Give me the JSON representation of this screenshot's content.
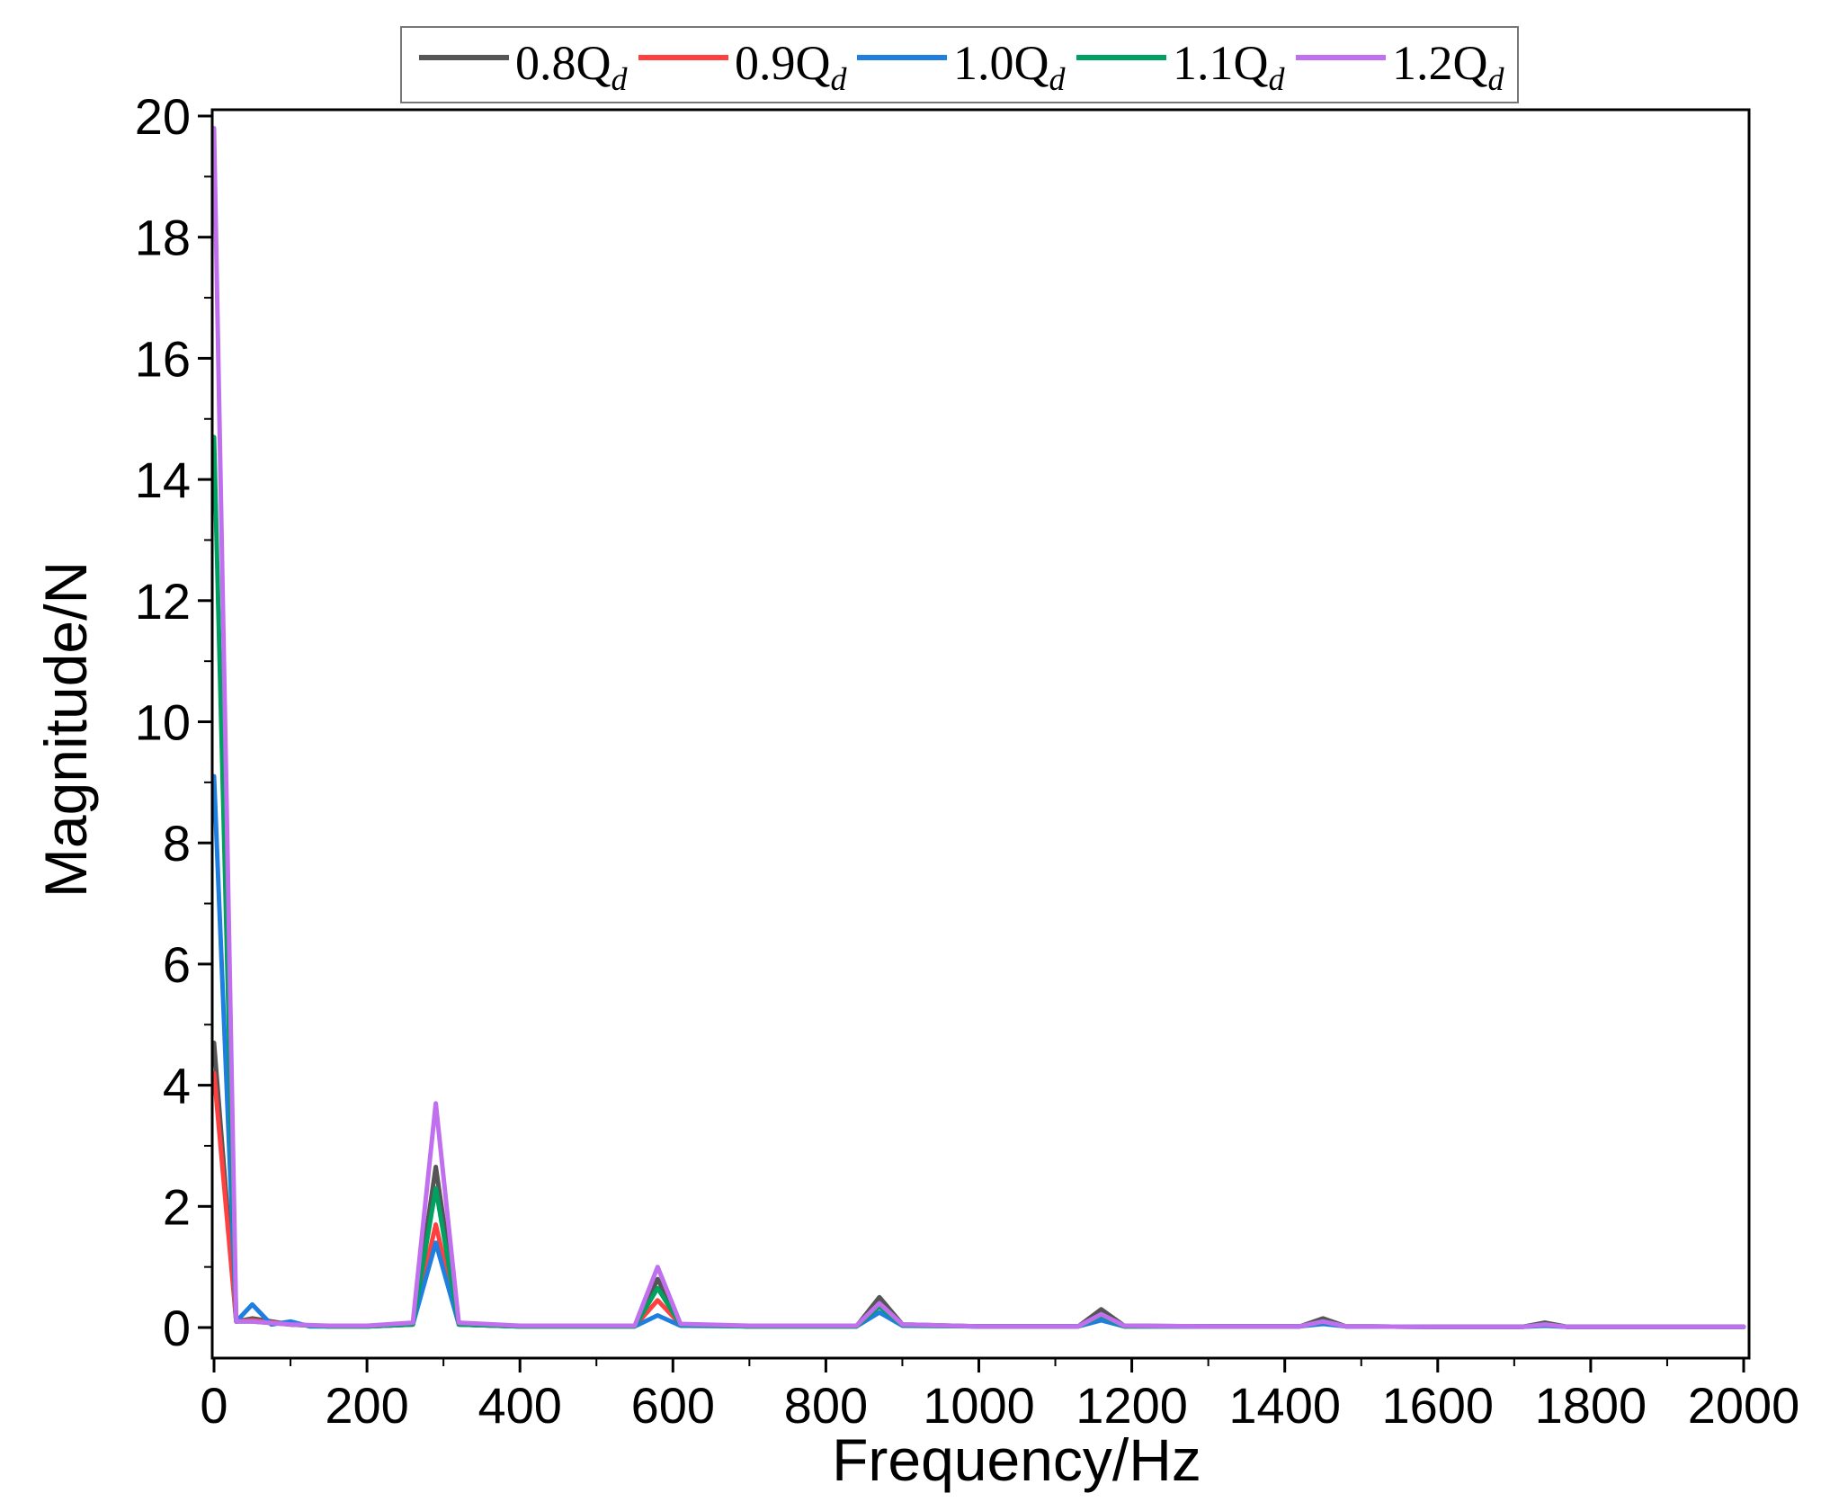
{
  "chart_data": {
    "type": "line",
    "xlabel": "Frequency/Hz",
    "ylabel": "Magnitude/N",
    "xlim": [
      0,
      2000
    ],
    "ylim": [
      0,
      20
    ],
    "xticks": [
      "0",
      "200",
      "400",
      "600",
      "800",
      "1000",
      "1200",
      "1400",
      "1600",
      "1800",
      "2000"
    ],
    "yticks": [
      "0",
      "2",
      "4",
      "6",
      "8",
      "10",
      "12",
      "14",
      "16",
      "18",
      "20"
    ],
    "grid": false,
    "legend_position": "top-center",
    "series": [
      {
        "name": "0.8Q",
        "sub": "d",
        "color": "#555555",
        "points": [
          [
            0,
            4.7
          ],
          [
            29,
            0.1
          ],
          [
            50,
            0.15
          ],
          [
            100,
            0.05
          ],
          [
            150,
            0.02
          ],
          [
            200,
            0.02
          ],
          [
            260,
            0.05
          ],
          [
            290,
            2.65
          ],
          [
            320,
            0.05
          ],
          [
            400,
            0.02
          ],
          [
            550,
            0.02
          ],
          [
            580,
            0.8
          ],
          [
            610,
            0.05
          ],
          [
            700,
            0.02
          ],
          [
            840,
            0.02
          ],
          [
            870,
            0.5
          ],
          [
            900,
            0.05
          ],
          [
            1000,
            0.02
          ],
          [
            1130,
            0.02
          ],
          [
            1160,
            0.3
          ],
          [
            1190,
            0.03
          ],
          [
            1300,
            0.02
          ],
          [
            1420,
            0.02
          ],
          [
            1450,
            0.15
          ],
          [
            1480,
            0.02
          ],
          [
            1600,
            0.01
          ],
          [
            1710,
            0.01
          ],
          [
            1740,
            0.08
          ],
          [
            1770,
            0.01
          ],
          [
            2000,
            0.01
          ]
        ]
      },
      {
        "name": "0.9Q",
        "sub": "d",
        "color": "#ff4040",
        "points": [
          [
            0,
            4.2
          ],
          [
            29,
            0.1
          ],
          [
            50,
            0.12
          ],
          [
            100,
            0.05
          ],
          [
            150,
            0.02
          ],
          [
            200,
            0.02
          ],
          [
            260,
            0.05
          ],
          [
            290,
            1.7
          ],
          [
            320,
            0.05
          ],
          [
            400,
            0.02
          ],
          [
            550,
            0.02
          ],
          [
            580,
            0.45
          ],
          [
            610,
            0.05
          ],
          [
            700,
            0.02
          ],
          [
            840,
            0.02
          ],
          [
            870,
            0.35
          ],
          [
            900,
            0.04
          ],
          [
            1000,
            0.02
          ],
          [
            1130,
            0.02
          ],
          [
            1160,
            0.18
          ],
          [
            1190,
            0.02
          ],
          [
            1300,
            0.02
          ],
          [
            1420,
            0.02
          ],
          [
            1450,
            0.08
          ],
          [
            1480,
            0.02
          ],
          [
            1600,
            0.01
          ],
          [
            1710,
            0.01
          ],
          [
            1740,
            0.04
          ],
          [
            1770,
            0.01
          ],
          [
            2000,
            0.01
          ]
        ]
      },
      {
        "name": "1.0Q",
        "sub": "d",
        "color": "#1f7fe0",
        "points": [
          [
            0,
            9.1
          ],
          [
            29,
            0.1
          ],
          [
            50,
            0.38
          ],
          [
            75,
            0.05
          ],
          [
            100,
            0.1
          ],
          [
            125,
            0.02
          ],
          [
            200,
            0.02
          ],
          [
            260,
            0.05
          ],
          [
            290,
            1.4
          ],
          [
            320,
            0.05
          ],
          [
            400,
            0.02
          ],
          [
            550,
            0.02
          ],
          [
            580,
            0.2
          ],
          [
            610,
            0.03
          ],
          [
            700,
            0.02
          ],
          [
            840,
            0.02
          ],
          [
            870,
            0.25
          ],
          [
            900,
            0.03
          ],
          [
            1000,
            0.02
          ],
          [
            1130,
            0.02
          ],
          [
            1160,
            0.12
          ],
          [
            1190,
            0.02
          ],
          [
            1300,
            0.02
          ],
          [
            1420,
            0.02
          ],
          [
            1450,
            0.06
          ],
          [
            1480,
            0.02
          ],
          [
            1600,
            0.01
          ],
          [
            1710,
            0.01
          ],
          [
            1740,
            0.03
          ],
          [
            1770,
            0.01
          ],
          [
            2000,
            0.01
          ]
        ]
      },
      {
        "name": "1.1Q",
        "sub": "d",
        "color": "#00a060",
        "points": [
          [
            0,
            14.7
          ],
          [
            29,
            0.1
          ],
          [
            50,
            0.1
          ],
          [
            100,
            0.05
          ],
          [
            150,
            0.02
          ],
          [
            200,
            0.02
          ],
          [
            260,
            0.05
          ],
          [
            290,
            2.3
          ],
          [
            320,
            0.05
          ],
          [
            400,
            0.02
          ],
          [
            550,
            0.02
          ],
          [
            580,
            0.65
          ],
          [
            610,
            0.05
          ],
          [
            700,
            0.02
          ],
          [
            840,
            0.02
          ],
          [
            870,
            0.35
          ],
          [
            900,
            0.04
          ],
          [
            1000,
            0.02
          ],
          [
            1130,
            0.02
          ],
          [
            1160,
            0.2
          ],
          [
            1190,
            0.02
          ],
          [
            1300,
            0.02
          ],
          [
            1420,
            0.02
          ],
          [
            1450,
            0.1
          ],
          [
            1480,
            0.02
          ],
          [
            1600,
            0.01
          ],
          [
            1710,
            0.01
          ],
          [
            1740,
            0.05
          ],
          [
            1770,
            0.01
          ],
          [
            2000,
            0.01
          ]
        ]
      },
      {
        "name": "1.2Q",
        "sub": "d",
        "color": "#c070ee",
        "points": [
          [
            0,
            19.8
          ],
          [
            29,
            0.1
          ],
          [
            50,
            0.1
          ],
          [
            100,
            0.05
          ],
          [
            150,
            0.03
          ],
          [
            200,
            0.03
          ],
          [
            260,
            0.08
          ],
          [
            290,
            3.7
          ],
          [
            320,
            0.08
          ],
          [
            400,
            0.03
          ],
          [
            550,
            0.03
          ],
          [
            580,
            1.0
          ],
          [
            610,
            0.06
          ],
          [
            700,
            0.03
          ],
          [
            840,
            0.03
          ],
          [
            870,
            0.4
          ],
          [
            900,
            0.05
          ],
          [
            1000,
            0.02
          ],
          [
            1130,
            0.02
          ],
          [
            1160,
            0.22
          ],
          [
            1190,
            0.03
          ],
          [
            1300,
            0.02
          ],
          [
            1420,
            0.02
          ],
          [
            1450,
            0.1
          ],
          [
            1480,
            0.02
          ],
          [
            1600,
            0.01
          ],
          [
            1710,
            0.01
          ],
          [
            1740,
            0.05
          ],
          [
            1770,
            0.01
          ],
          [
            2000,
            0.01
          ]
        ]
      }
    ]
  }
}
